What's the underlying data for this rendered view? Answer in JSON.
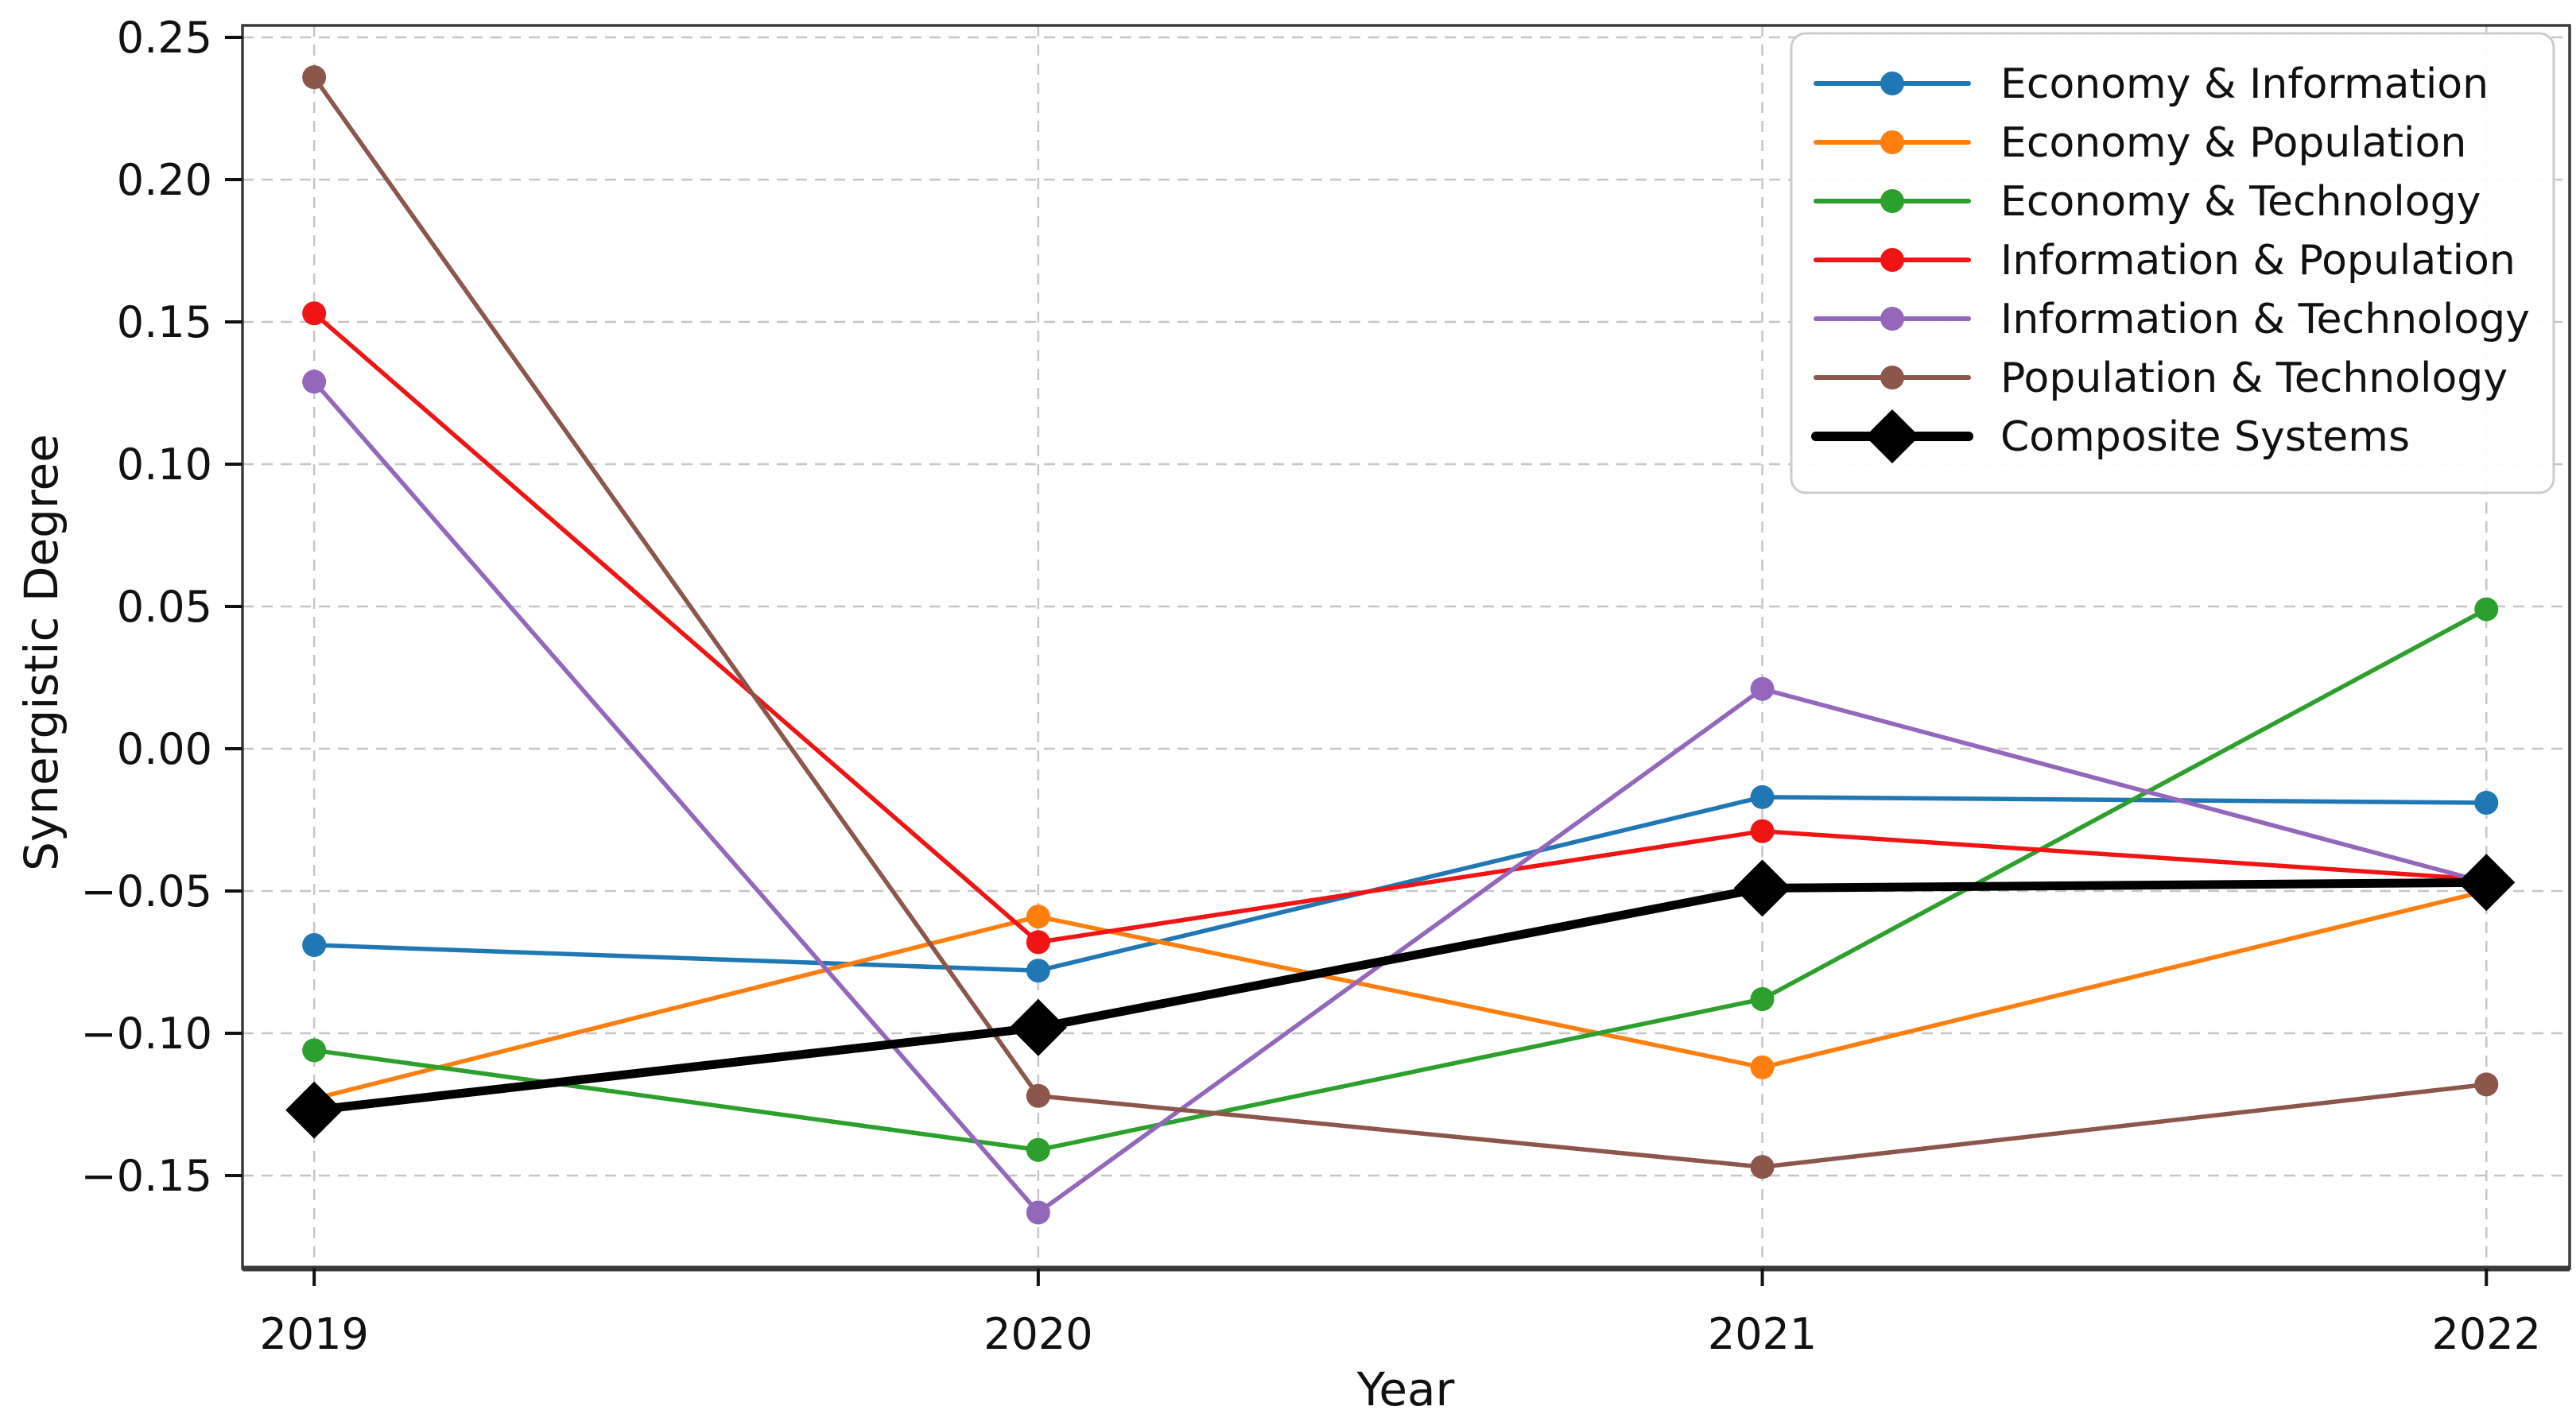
{
  "figure": {
    "xlabel": "Year",
    "ylabel": "Synergistic Degree",
    "background": "#ffffff",
    "text_color": "#111111",
    "grid_color": "#c6c6c6",
    "spine_color": "#3a3a3a"
  },
  "chart_data": {
    "type": "line",
    "title": "",
    "xlabel": "Year",
    "ylabel": "Synergistic Degree",
    "x": [
      2019,
      2020,
      2021,
      2022
    ],
    "x_tick_labels": [
      "2019",
      "2020",
      "2021",
      "2022"
    ],
    "y_ticks": [
      0.25,
      0.2,
      0.15,
      0.1,
      0.05,
      0.0,
      -0.05,
      -0.1,
      -0.15
    ],
    "xlim": [
      2018.901,
      2022.115
    ],
    "ylim": [
      -0.1827,
      0.2542
    ],
    "grid": true,
    "grid_style": "dashed",
    "legend_position": "upper right",
    "series": [
      {
        "name": "Economy & Information",
        "color": "#1f77b4",
        "marker": "circle",
        "linewidth": 5.5,
        "values": [
          -0.069,
          -0.078,
          -0.017,
          -0.019
        ]
      },
      {
        "name": "Economy & Population",
        "color": "#ff7f0e",
        "marker": "circle",
        "linewidth": 5.5,
        "values": [
          -0.123,
          -0.059,
          -0.112,
          -0.05
        ]
      },
      {
        "name": "Economy & Technology",
        "color": "#2ca02c",
        "marker": "circle",
        "linewidth": 5.5,
        "values": [
          -0.106,
          -0.141,
          -0.088,
          0.049
        ]
      },
      {
        "name": "Information & Population",
        "color": "#f01515",
        "marker": "circle",
        "linewidth": 5.5,
        "values": [
          0.153,
          -0.068,
          -0.029,
          -0.046
        ]
      },
      {
        "name": "Information & Technology",
        "color": "#9467bd",
        "marker": "circle",
        "linewidth": 5.5,
        "values": [
          0.129,
          -0.163,
          0.021,
          -0.047
        ]
      },
      {
        "name": "Population & Technology",
        "color": "#8c564b",
        "marker": "circle",
        "linewidth": 5.5,
        "values": [
          0.236,
          -0.122,
          -0.147,
          -0.118
        ]
      },
      {
        "name": "Composite Systems",
        "color": "#000000",
        "marker": "diamond",
        "linewidth": 11,
        "values": [
          -0.127,
          -0.098,
          -0.049,
          -0.047
        ]
      }
    ]
  }
}
